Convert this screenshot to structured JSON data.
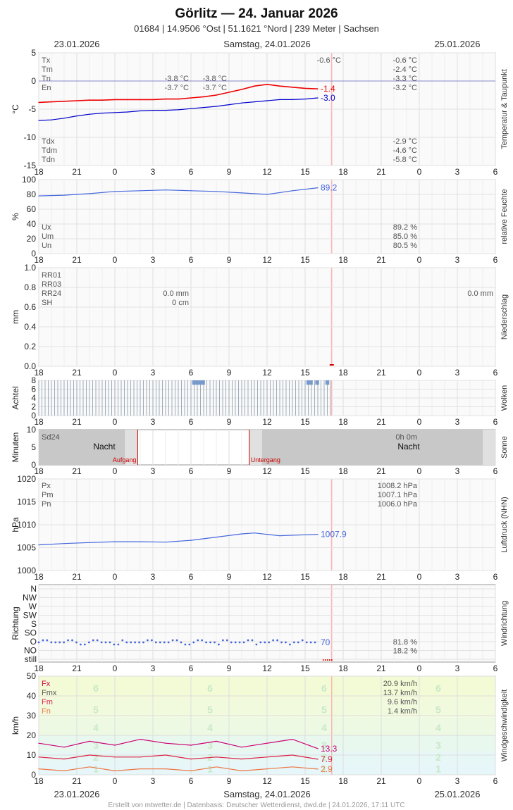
{
  "title": "Görlitz  —  24. Januar 2026",
  "subtitle": "01684  |  14.9506 °Ost  |  51.1621 °Nord  |  239 Meter  |  Sachsen",
  "dates": {
    "left": "23.01.2026",
    "center": "Samstag, 24.01.2026",
    "right": "25.01.2026"
  },
  "footer": "Erstellt von mtwetter.de | Datenbasis: Deutscher Wetterdienst, dwd.de | 24.01.2026, 17:11 UTC",
  "colors": {
    "temp": "#ee0000",
    "dew": "#0000cc",
    "blue": "#4466dd",
    "wind_fx": "#cc0077",
    "wind_fm": "#dd2244",
    "wind_fn": "#ee7744",
    "cloud": "#7799cc",
    "now_line": "#ff9999"
  },
  "chart_data": [
    {
      "id": "temperature",
      "type": "line",
      "ylabel": "°C",
      "side_label": "Temperatur & Taupunkt",
      "ylim": [
        -15,
        5
      ],
      "yticks": [
        5,
        0,
        -5,
        -10,
        -15
      ],
      "xticks": [
        "18",
        "21",
        "0",
        "3",
        "6",
        "9",
        "12",
        "15",
        "18",
        "21",
        "0",
        "3",
        "6"
      ],
      "series": [
        {
          "key": "temp",
          "x": [
            0,
            1,
            2,
            3,
            4,
            5,
            6,
            7,
            8,
            9,
            10,
            11,
            12,
            13,
            14,
            15,
            16,
            17,
            18,
            19,
            20,
            21,
            22
          ],
          "y": [
            -3.8,
            -3.7,
            -3.6,
            -3.5,
            -3.4,
            -3.4,
            -3.3,
            -3.3,
            -3.3,
            -3.3,
            -3.2,
            -3.2,
            -3.0,
            -2.8,
            -2.5,
            -2.0,
            -1.5,
            -0.9,
            -0.6,
            -0.9,
            -1.1,
            -1.3,
            -1.4
          ]
        },
        {
          "key": "dew",
          "x": [
            0,
            1,
            2,
            3,
            4,
            5,
            6,
            7,
            8,
            9,
            10,
            11,
            12,
            13,
            14,
            15,
            16,
            17,
            18,
            19,
            20,
            21,
            22
          ],
          "y": [
            -7.0,
            -6.9,
            -6.6,
            -6.2,
            -5.9,
            -5.7,
            -5.6,
            -5.5,
            -5.3,
            -5.2,
            -5.2,
            -5.1,
            -4.9,
            -4.7,
            -4.5,
            -4.2,
            -3.9,
            -3.7,
            -3.5,
            -3.3,
            -3.3,
            -3.2,
            -3.0
          ]
        }
      ],
      "end_labels": {
        "temp": "-1.4",
        "dew": "-3.0"
      },
      "stats_top": [
        {
          "label": "Tx",
          "v1": "",
          "v2": "",
          "v3": "-0.6 °C",
          "v4": "-0.6 °C"
        },
        {
          "label": "Tm",
          "v1": "",
          "v2": "",
          "v3": "",
          "v4": "-2.4 °C"
        },
        {
          "label": "Tn",
          "v1": "-3.8 °C",
          "v2": "-3.8 °C",
          "v3": "",
          "v4": "-3.3 °C"
        },
        {
          "label": "En",
          "v1": "-3.7 °C",
          "v2": "-3.7 °C",
          "v3": "",
          "v4": "-3.2 °C"
        }
      ],
      "stats_bottom": [
        {
          "label": "Tdx",
          "v4": "-2.9 °C"
        },
        {
          "label": "Tdm",
          "v4": "-4.6 °C"
        },
        {
          "label": "Tdn",
          "v4": "-5.8 °C"
        }
      ]
    },
    {
      "id": "humidity",
      "type": "line",
      "ylabel": "%",
      "side_label": "relative Feuchte",
      "ylim": [
        0,
        100
      ],
      "yticks": [
        100,
        80,
        60,
        40,
        20,
        0
      ],
      "xticks": [
        "18",
        "21",
        "0",
        "3",
        "6",
        "9",
        "12",
        "15",
        "18",
        "21",
        "0",
        "3",
        "6"
      ],
      "series": [
        {
          "key": "blue",
          "x": [
            0,
            2,
            4,
            6,
            8,
            10,
            12,
            14,
            16,
            18,
            20,
            22
          ],
          "y": [
            78,
            79,
            81,
            84,
            85,
            86,
            85,
            84,
            82,
            80,
            85,
            89
          ]
        }
      ],
      "end_labels": {
        "blue": "89.2"
      },
      "stats": [
        {
          "label": "Ux",
          "value": "89.2 %"
        },
        {
          "label": "Um",
          "value": "85.0 %"
        },
        {
          "label": "Un",
          "value": "80.5 %"
        }
      ]
    },
    {
      "id": "precipitation",
      "type": "bar",
      "ylabel": "mm",
      "side_label": "Niederschlag",
      "ylim": [
        0,
        1.0
      ],
      "yticks": [
        "1.0",
        "0.8",
        "0.6",
        "0.4",
        "0.2",
        "0.0"
      ],
      "xticks": [
        "18",
        "21",
        "0",
        "3",
        "6",
        "9",
        "12",
        "15",
        "18",
        "21",
        "0",
        "3",
        "6"
      ],
      "labels": [
        "RR01",
        "RR03",
        "RR24",
        "SH"
      ],
      "day_values": {
        "rr24": "0.0 mm",
        "sh": "0 cm"
      },
      "right_value": "0.0 mm"
    },
    {
      "id": "clouds",
      "type": "bar",
      "ylabel": "Achtel",
      "side_label": "Wolken",
      "ylim": [
        0,
        8
      ],
      "yticks": [
        8,
        6,
        4,
        2,
        0
      ],
      "xticks": [
        "18",
        "21",
        "0",
        "3",
        "6",
        "9",
        "12",
        "15",
        "18",
        "21",
        "0",
        "3",
        "6"
      ],
      "segments": [
        {
          "x0": 12.1,
          "x1": 13.1
        },
        {
          "x0": 21.1,
          "x1": 21.6
        },
        {
          "x0": 21.8,
          "x1": 22.1
        },
        {
          "x0": 22.6,
          "x1": 22.9
        }
      ]
    },
    {
      "id": "sunshine",
      "type": "bar",
      "ylabel": "Minuten",
      "side_label": "Sonne",
      "ylim": [
        0,
        10
      ],
      "yticks": [
        10,
        5,
        0
      ],
      "xticks": [
        "18",
        "21",
        "0",
        "3",
        "6",
        "9",
        "12",
        "15",
        "18",
        "21",
        "0",
        "3",
        "6"
      ],
      "label": "Sd24",
      "total": "0h 0m",
      "night": "Nacht",
      "sunrise": "Aufgang",
      "sunset": "Untergang",
      "sunrise_h": 7.8,
      "sunset_h": 16.6
    },
    {
      "id": "pressure",
      "type": "line",
      "ylabel": "hPa",
      "side_label": "Luftdruck (NHN)",
      "ylim": [
        1000,
        1020
      ],
      "yticks": [
        1020,
        1015,
        1010,
        1005,
        1000
      ],
      "xticks": [
        "18",
        "21",
        "0",
        "3",
        "6",
        "9",
        "12",
        "15",
        "18",
        "21",
        "0",
        "3",
        "6"
      ],
      "series": [
        {
          "key": "blue",
          "x": [
            0,
            2,
            4,
            6,
            8,
            10,
            12,
            14,
            16,
            17,
            18,
            19,
            20,
            22
          ],
          "y": [
            1005.6,
            1005.9,
            1006.1,
            1006.3,
            1006.3,
            1006.2,
            1006.6,
            1007.3,
            1008.0,
            1008.2,
            1007.9,
            1007.6,
            1007.7,
            1007.9
          ]
        }
      ],
      "end_labels": {
        "blue": "1007.9"
      },
      "stats": [
        {
          "label": "Px",
          "value": "1008.2 hPa"
        },
        {
          "label": "Pm",
          "value": "1007.1 hPa"
        },
        {
          "label": "Pn",
          "value": "1006.0 hPa"
        }
      ]
    },
    {
      "id": "wind_direction",
      "type": "scatter",
      "ylabel": "Richtung",
      "side_label": "Windrichtung",
      "yticks": [
        "N",
        "NW",
        "W",
        "SW",
        "S",
        "SO",
        "O",
        "NO",
        "still"
      ],
      "xticks": [
        "18",
        "21",
        "0",
        "3",
        "6",
        "9",
        "12",
        "15",
        "18",
        "21",
        "0",
        "3",
        "6"
      ],
      "end_label": "70",
      "stats": [
        {
          "label": "O",
          "value": "81.8 %"
        },
        {
          "label": "NO",
          "value": "18.2 %"
        }
      ]
    },
    {
      "id": "wind_speed",
      "type": "line",
      "ylabel": "km/h",
      "side_label": "Windgeschwindigkeit",
      "ylim": [
        0,
        50
      ],
      "yticks": [
        50,
        40,
        30,
        20,
        10,
        0
      ],
      "xticks": [
        "18",
        "21",
        "0",
        "3",
        "6",
        "9",
        "12",
        "15",
        "18",
        "21",
        "0",
        "3",
        "6"
      ],
      "beaufort": [
        "6",
        "5",
        "4",
        "3",
        "2",
        "1"
      ],
      "series": [
        {
          "key": "wind_fx",
          "x": [
            0,
            2,
            4,
            6,
            8,
            10,
            12,
            14,
            16,
            18,
            20,
            22
          ],
          "y": [
            16,
            14,
            17,
            15,
            18,
            16,
            15,
            17,
            14,
            16,
            18,
            13.3
          ]
        },
        {
          "key": "wind_fm",
          "x": [
            0,
            2,
            4,
            6,
            8,
            10,
            12,
            14,
            16,
            18,
            20,
            22
          ],
          "y": [
            9,
            8,
            10,
            9,
            9,
            10,
            8,
            9,
            8,
            9,
            10,
            7.9
          ]
        },
        {
          "key": "wind_fn",
          "x": [
            0,
            2,
            4,
            6,
            8,
            10,
            12,
            14,
            16,
            18,
            20,
            22
          ],
          "y": [
            3,
            2,
            4,
            2,
            3,
            3,
            2,
            4,
            2,
            3,
            4,
            2.9
          ]
        }
      ],
      "end_labels": {
        "wind_fx": "13.3",
        "wind_fm": "7.9",
        "wind_fn": "2.9"
      },
      "stats": [
        {
          "label": "Fx",
          "value": "20.9 km/h",
          "color": "#cc0044"
        },
        {
          "label": "Fmx",
          "value": "13.7 km/h",
          "color": "#555555"
        },
        {
          "label": "Fm",
          "value": "9.6 km/h",
          "color": "#dd2244"
        },
        {
          "label": "Fn",
          "value": "1.4 km/h",
          "color": "#ee7744"
        }
      ]
    }
  ]
}
